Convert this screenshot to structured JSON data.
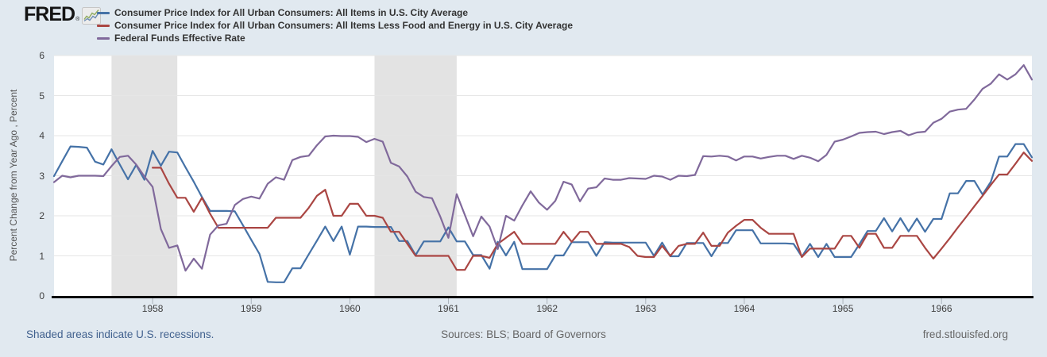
{
  "header": {
    "logo": "FRED",
    "registered": "®"
  },
  "footer": {
    "recessions_note": "Shaded areas indicate U.S. recessions.",
    "sources": "Sources: BLS; Board of Governors",
    "site": "fred.stlouisfed.org"
  },
  "chart_data": {
    "type": "line",
    "title": "",
    "ylabel": "Percent Change from Year Ago , Percent",
    "xlabel": "",
    "ylim": [
      0,
      6
    ],
    "yticks": [
      0,
      1,
      2,
      3,
      4,
      5,
      6
    ],
    "x_domain_months": [
      "1957-01",
      "1966-12"
    ],
    "x_tick_years": [
      1958,
      1959,
      1960,
      1961,
      1962,
      1963,
      1964,
      1965,
      1966
    ],
    "grid": true,
    "legend_position": "top-left",
    "recession_color": "#e3e3e3",
    "recession_bands_month_index": [
      [
        7,
        15
      ],
      [
        39,
        49
      ]
    ],
    "series": [
      {
        "name": "Consumer Price Index for All Urban Consumers: All Items in U.S. City Average",
        "color": "#4572a7",
        "start_month": 0,
        "values": [
          2.99,
          3.36,
          3.73,
          3.72,
          3.7,
          3.35,
          3.28,
          3.66,
          3.28,
          2.91,
          3.27,
          2.9,
          3.62,
          3.25,
          3.6,
          3.58,
          3.21,
          2.85,
          2.47,
          2.12,
          2.12,
          2.12,
          2.11,
          1.76,
          1.4,
          1.05,
          0.35,
          0.34,
          0.34,
          0.69,
          0.69,
          1.04,
          1.38,
          1.73,
          1.37,
          1.73,
          1.03,
          1.73,
          1.73,
          1.72,
          1.72,
          1.72,
          1.37,
          1.37,
          1.02,
          1.36,
          1.36,
          1.36,
          1.71,
          1.36,
          1.36,
          1.02,
          1.02,
          0.68,
          1.35,
          1.01,
          1.35,
          0.67,
          0.67,
          0.67,
          0.67,
          1.01,
          1.01,
          1.34,
          1.34,
          1.34,
          1.0,
          1.34,
          1.33,
          1.33,
          1.33,
          1.33,
          1.33,
          1.0,
          1.33,
          0.99,
          0.99,
          1.32,
          1.32,
          1.32,
          0.99,
          1.32,
          1.32,
          1.64,
          1.64,
          1.64,
          1.31,
          1.31,
          1.31,
          1.31,
          1.3,
          0.98,
          1.3,
          0.97,
          1.3,
          0.97,
          0.97,
          0.97,
          1.29,
          1.62,
          1.62,
          1.94,
          1.61,
          1.94,
          1.61,
          1.93,
          1.6,
          1.92,
          1.92,
          2.56,
          2.56,
          2.87,
          2.87,
          2.53,
          2.85,
          3.48,
          3.48,
          3.79,
          3.79,
          3.46
        ]
      },
      {
        "name": "Consumer Price Index for All Urban Consumers: All Items Less Food and Energy in U.S. City Average",
        "color": "#aa4643",
        "start_month": 12,
        "values": [
          3.2,
          3.2,
          2.8,
          2.45,
          2.45,
          2.1,
          2.45,
          2.05,
          1.7,
          1.7,
          1.7,
          1.7,
          1.7,
          1.7,
          1.7,
          1.95,
          1.95,
          1.95,
          1.95,
          2.2,
          2.5,
          2.65,
          2.0,
          2.0,
          2.3,
          2.3,
          2.0,
          2.0,
          1.95,
          1.6,
          1.6,
          1.3,
          1.0,
          1.0,
          1.0,
          1.0,
          1.0,
          0.65,
          0.65,
          1.0,
          1.0,
          0.95,
          1.3,
          1.45,
          1.6,
          1.3,
          1.3,
          1.3,
          1.3,
          1.3,
          1.6,
          1.35,
          1.6,
          1.6,
          1.3,
          1.3,
          1.3,
          1.3,
          1.22,
          1.0,
          0.97,
          0.97,
          1.25,
          1.0,
          1.25,
          1.3,
          1.3,
          1.58,
          1.25,
          1.25,
          1.58,
          1.75,
          1.9,
          1.9,
          1.7,
          1.55,
          1.55,
          1.55,
          1.55,
          0.97,
          1.18,
          1.18,
          1.18,
          1.18,
          1.5,
          1.5,
          1.2,
          1.55,
          1.55,
          1.2,
          1.2,
          1.5,
          1.5,
          1.5,
          1.2,
          0.93,
          1.18,
          1.44,
          1.71,
          1.97,
          2.24,
          2.5,
          2.77,
          3.03,
          3.03,
          3.3,
          3.58,
          3.37
        ]
      },
      {
        "name": "Federal Funds Effective Rate",
        "color": "#80699b",
        "start_month": 0,
        "values": [
          2.84,
          3.0,
          2.96,
          3.0,
          3.0,
          3.0,
          2.99,
          3.24,
          3.47,
          3.5,
          3.28,
          2.98,
          2.72,
          1.67,
          1.2,
          1.26,
          0.63,
          0.93,
          0.68,
          1.53,
          1.76,
          1.8,
          2.27,
          2.42,
          2.48,
          2.43,
          2.8,
          2.96,
          2.9,
          3.39,
          3.47,
          3.5,
          3.76,
          3.98,
          4.0,
          3.99,
          3.99,
          3.97,
          3.84,
          3.92,
          3.85,
          3.32,
          3.23,
          2.98,
          2.6,
          2.47,
          2.44,
          1.98,
          1.45,
          2.54,
          2.02,
          1.49,
          1.98,
          1.73,
          1.17,
          2.0,
          1.88,
          2.26,
          2.61,
          2.33,
          2.15,
          2.37,
          2.85,
          2.78,
          2.36,
          2.68,
          2.71,
          2.93,
          2.9,
          2.9,
          2.94,
          2.93,
          2.92,
          3.0,
          2.98,
          2.9,
          3.0,
          2.99,
          3.02,
          3.49,
          3.48,
          3.5,
          3.48,
          3.38,
          3.48,
          3.48,
          3.43,
          3.47,
          3.5,
          3.5,
          3.42,
          3.5,
          3.45,
          3.36,
          3.52,
          3.85,
          3.9,
          3.98,
          4.07,
          4.09,
          4.1,
          4.04,
          4.09,
          4.12,
          4.01,
          4.08,
          4.1,
          4.32,
          4.42,
          4.6,
          4.65,
          4.67,
          4.9,
          5.17,
          5.3,
          5.53,
          5.4,
          5.53,
          5.76,
          5.4
        ]
      }
    ]
  }
}
